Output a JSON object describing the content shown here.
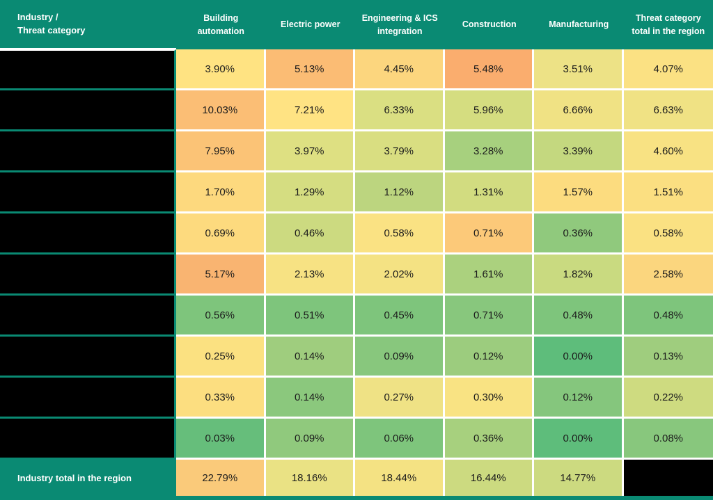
{
  "colors": {
    "teal_header": "#0A8A73",
    "redacted_black": "#000000",
    "grid_white": "#FFFFFF",
    "cell_text": "#1C1C1C",
    "header_text": "#FFFFFF"
  },
  "header": {
    "corner_label": "Industry /\nThreat category",
    "columns": [
      "Building automation",
      "Electric power",
      "Engineering & ICS integration",
      "Construction",
      "Manufacturing",
      "Threat category total in the region"
    ]
  },
  "rows": [
    {
      "label": "",
      "redacted": true,
      "cells": [
        {
          "value": "3.90%",
          "color": "#FFE382"
        },
        {
          "value": "5.13%",
          "color": "#FBBC74"
        },
        {
          "value": "4.45%",
          "color": "#FCD67E"
        },
        {
          "value": "5.48%",
          "color": "#FAAD6E"
        },
        {
          "value": "3.51%",
          "color": "#EDE286"
        },
        {
          "value": "4.07%",
          "color": "#FBE183"
        }
      ]
    },
    {
      "label": "",
      "redacted": true,
      "cells": [
        {
          "value": "10.03%",
          "color": "#FBBE75"
        },
        {
          "value": "7.21%",
          "color": "#FFE383"
        },
        {
          "value": "6.33%",
          "color": "#DADF82"
        },
        {
          "value": "5.96%",
          "color": "#D5DD80"
        },
        {
          "value": "6.66%",
          "color": "#F0E284"
        },
        {
          "value": "6.63%",
          "color": "#F0E284"
        }
      ]
    },
    {
      "label": "",
      "redacted": true,
      "cells": [
        {
          "value": "7.95%",
          "color": "#FBC376"
        },
        {
          "value": "3.97%",
          "color": "#DEE082"
        },
        {
          "value": "3.79%",
          "color": "#D9DE81"
        },
        {
          "value": "3.28%",
          "color": "#A7D07E"
        },
        {
          "value": "3.39%",
          "color": "#C4D87F"
        },
        {
          "value": "4.60%",
          "color": "#F8E283"
        }
      ]
    },
    {
      "label": "",
      "redacted": true,
      "cells": [
        {
          "value": "1.70%",
          "color": "#FDD97E"
        },
        {
          "value": "1.29%",
          "color": "#D5DD81"
        },
        {
          "value": "1.12%",
          "color": "#BCD57F"
        },
        {
          "value": "1.31%",
          "color": "#D2DC80"
        },
        {
          "value": "1.57%",
          "color": "#FCDC7F"
        },
        {
          "value": "1.51%",
          "color": "#FBDF81"
        }
      ]
    },
    {
      "label": "",
      "redacted": true,
      "cells": [
        {
          "value": "0.69%",
          "color": "#FDDA7E"
        },
        {
          "value": "0.46%",
          "color": "#CCDA80"
        },
        {
          "value": "0.58%",
          "color": "#FAE283"
        },
        {
          "value": "0.71%",
          "color": "#FCC979"
        },
        {
          "value": "0.36%",
          "color": "#90C97D"
        },
        {
          "value": "0.58%",
          "color": "#FAE182"
        }
      ]
    },
    {
      "label": "",
      "redacted": true,
      "cells": [
        {
          "value": "5.17%",
          "color": "#F9B471"
        },
        {
          "value": "2.13%",
          "color": "#F7E283"
        },
        {
          "value": "2.02%",
          "color": "#F4E283"
        },
        {
          "value": "1.61%",
          "color": "#ABD17E"
        },
        {
          "value": "1.82%",
          "color": "#C9DA80"
        },
        {
          "value": "2.58%",
          "color": "#FBD67E"
        }
      ]
    },
    {
      "label": "",
      "redacted": true,
      "cells": [
        {
          "value": "0.56%",
          "color": "#7EC57C"
        },
        {
          "value": "0.51%",
          "color": "#7EC57C"
        },
        {
          "value": "0.45%",
          "color": "#7EC57C"
        },
        {
          "value": "0.71%",
          "color": "#88C77D"
        },
        {
          "value": "0.48%",
          "color": "#7EC57C"
        },
        {
          "value": "0.48%",
          "color": "#7EC57C"
        }
      ]
    },
    {
      "label": "",
      "redacted": true,
      "cells": [
        {
          "value": "0.25%",
          "color": "#FBE181"
        },
        {
          "value": "0.14%",
          "color": "#9FCD7E"
        },
        {
          "value": "0.09%",
          "color": "#88C77D"
        },
        {
          "value": "0.12%",
          "color": "#9CCC7E"
        },
        {
          "value": "0.00%",
          "color": "#5EBD7B"
        },
        {
          "value": "0.13%",
          "color": "#9FCD7E"
        }
      ]
    },
    {
      "label": "",
      "redacted": true,
      "cells": [
        {
          "value": "0.33%",
          "color": "#FCDE80"
        },
        {
          "value": "0.14%",
          "color": "#8BC87D"
        },
        {
          "value": "0.27%",
          "color": "#EFE285"
        },
        {
          "value": "0.30%",
          "color": "#F9E383"
        },
        {
          "value": "0.12%",
          "color": "#85C67D"
        },
        {
          "value": "0.22%",
          "color": "#CEDB80"
        }
      ]
    },
    {
      "label": "",
      "redacted": true,
      "cells": [
        {
          "value": "0.03%",
          "color": "#66BE7B"
        },
        {
          "value": "0.09%",
          "color": "#90C97D"
        },
        {
          "value": "0.06%",
          "color": "#7EC57C"
        },
        {
          "value": "0.36%",
          "color": "#A7D07E"
        },
        {
          "value": "0.00%",
          "color": "#5EBD7B"
        },
        {
          "value": "0.08%",
          "color": "#88C77D"
        }
      ]
    }
  ],
  "footer": {
    "label": "Industry total in the region",
    "cells": [
      {
        "value": "22.79%",
        "color": "#FACA7A"
      },
      {
        "value": "18.16%",
        "color": "#EAE284"
      },
      {
        "value": "18.44%",
        "color": "#F4E283"
      },
      {
        "value": "16.44%",
        "color": "#CCDA80"
      },
      {
        "value": "14.77%",
        "color": "#CCDA80"
      }
    ],
    "last_cell_redacted": true
  },
  "chart_data": {
    "type": "heatmap",
    "title": "",
    "columns": [
      "Building automation",
      "Electric power",
      "Engineering & ICS integration",
      "Construction",
      "Manufacturing",
      "Threat category total in the region"
    ],
    "row_labels": [
      "[redacted]",
      "[redacted]",
      "[redacted]",
      "[redacted]",
      "[redacted]",
      "[redacted]",
      "[redacted]",
      "[redacted]",
      "[redacted]",
      "[redacted]"
    ],
    "values_percent": [
      [
        3.9,
        5.13,
        4.45,
        5.48,
        3.51,
        4.07
      ],
      [
        10.03,
        7.21,
        6.33,
        5.96,
        6.66,
        6.63
      ],
      [
        7.95,
        3.97,
        3.79,
        3.28,
        3.39,
        4.6
      ],
      [
        1.7,
        1.29,
        1.12,
        1.31,
        1.57,
        1.51
      ],
      [
        0.69,
        0.46,
        0.58,
        0.71,
        0.36,
        0.58
      ],
      [
        5.17,
        2.13,
        2.02,
        1.61,
        1.82,
        2.58
      ],
      [
        0.56,
        0.51,
        0.45,
        0.71,
        0.48,
        0.48
      ],
      [
        0.25,
        0.14,
        0.09,
        0.12,
        0.0,
        0.13
      ],
      [
        0.33,
        0.14,
        0.27,
        0.3,
        0.12,
        0.22
      ],
      [
        0.03,
        0.09,
        0.06,
        0.36,
        0.0,
        0.08
      ]
    ],
    "totals_row": {
      "label": "Industry total in the region",
      "values_percent": [
        22.79,
        18.16,
        18.44,
        16.44,
        14.77,
        null
      ]
    },
    "color_scale": "green (low) → yellow → orange (high)"
  }
}
